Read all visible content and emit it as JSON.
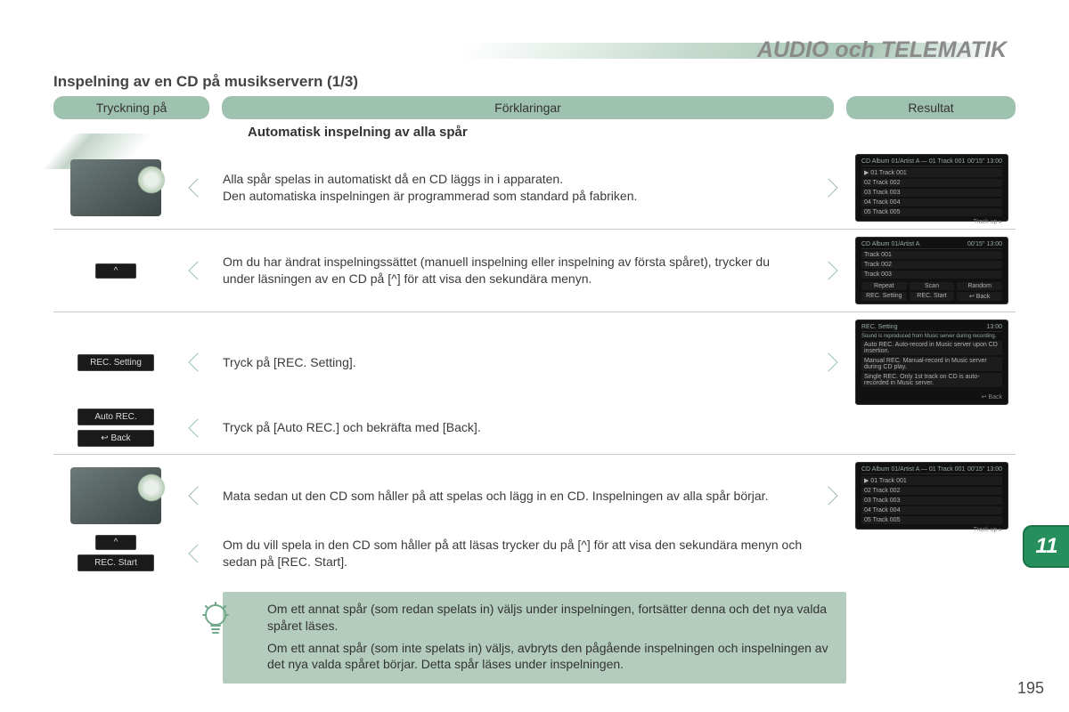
{
  "chapter_title": "AUDIO och TELEMATIK",
  "section_title": "Inspelning av en CD på musikservern (1/3)",
  "columns": {
    "press": "Tryckning på",
    "explain": "Förklaringar",
    "result": "Resultat"
  },
  "sub_heading": "Automatisk inspelning av alla spår",
  "rows": {
    "r1": {
      "text": "Alla spår spelas in automatiskt då en CD läggs in i apparaten.\nDen automatiska inspelningen är programmerad som standard på fabriken."
    },
    "r2": {
      "text": "Om du har ändrat inspelningssättet (manuell inspelning eller inspelning av första spåret), trycker du under läsningen av en CD på [^] för att visa den sekundära menyn."
    },
    "r3": {
      "text": "Tryck på [REC. Setting].",
      "btn": "REC. Setting"
    },
    "r4": {
      "text": "Tryck på [Auto REC.] och bekräfta med [Back].",
      "btn1": "Auto REC.",
      "btn2": "↩ Back"
    },
    "r5": {
      "text": "Mata sedan ut den CD som håller på att spelas och lägg in en CD. Inspelningen av alla spår börjar."
    },
    "r6": {
      "text": "Om du vill spela in den CD som håller på att läsas trycker du på [^] för att visa den sekundära menyn och sedan på [REC. Start].",
      "btn": "REC. Start"
    }
  },
  "tip": {
    "p1": "Om ett annat spår (som redan spelats in) väljs under inspelningen, fortsätter denna och det nya valda spåret läses.",
    "p2": "Om ett annat spår (som inte spelats in) väljs, avbryts den pågående inspelningen och inspelningen av det nya valda spåret börjar. Detta spår läses under inspelningen."
  },
  "side_tab": "11",
  "page_number": "195",
  "screens": {
    "tracks": {
      "header_left": "CD   Album 01/Artist A — 01 Track 001",
      "header_right": "00'15''   13:00",
      "lines": [
        "▶ 01 Track 001",
        "  02 Track 002",
        "  03 Track 003",
        "  04 Track 004",
        "  05 Track 005"
      ],
      "footer": "Track up ▸"
    },
    "menu": {
      "header_left": "CD   Album 01/Artist A",
      "header_right": "00'15''   13:00",
      "lines": [
        "Track 001",
        "Track 002",
        "Track 003"
      ],
      "buttons": [
        "Repeat",
        "Scan",
        "Random",
        "REC. Setting",
        "REC. Start",
        "↩ Back"
      ]
    },
    "recsetting": {
      "header_left": "REC. Setting",
      "header_right": "13:00",
      "desc": "Sound is reproduced from Music server during recording.",
      "opts": [
        "Auto REC.   Auto-record in Music server upon CD insertion.",
        "Manual REC.  Manual-record in Music server during CD play.",
        "Single REC.  Only 1st track on CD is auto-recorded in Music server."
      ],
      "footer": "↩ Back"
    }
  }
}
